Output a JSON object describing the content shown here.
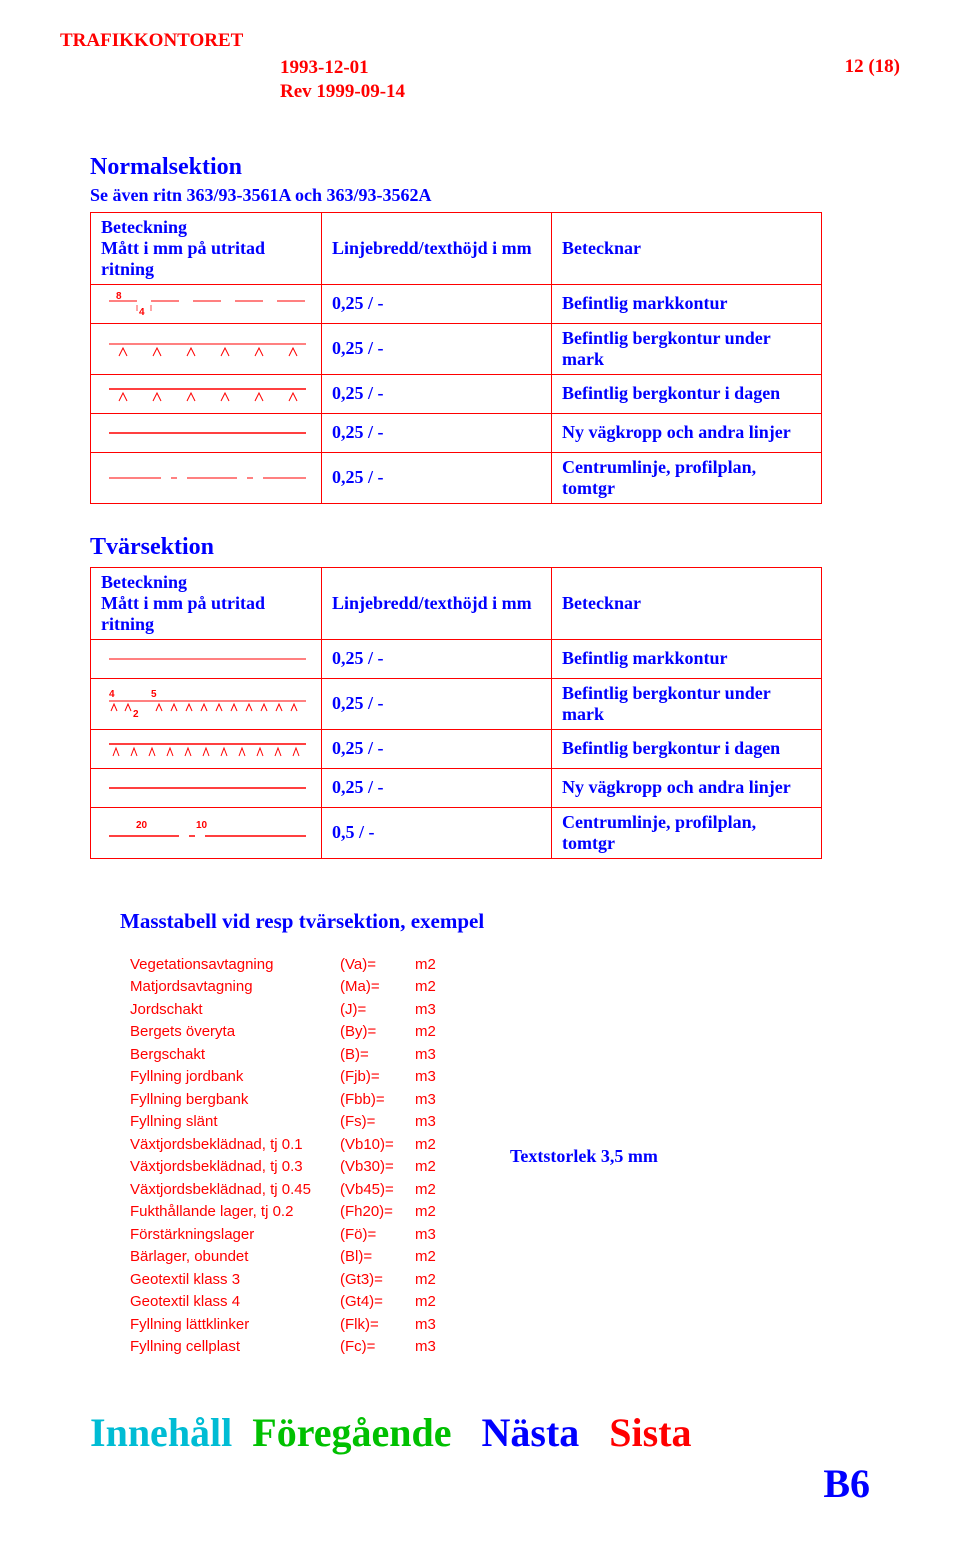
{
  "header": {
    "org": "TRAFIKKONTORET",
    "date": "1993-12-01",
    "rev": "Rev 1999-09-14",
    "page": "12 (18)"
  },
  "normal": {
    "title": "Normalsektion",
    "subtitle": "Se även ritn 363/93-3561A och 363/93-3562A",
    "colA": "Beteckning\nMått i mm på utritad ritning",
    "colB": "Linjebredd/texthöjd i mm",
    "colC": "Betecknar",
    "rows": [
      {
        "mid": "0,25 / -",
        "right": "Befintlig markkontur"
      },
      {
        "mid": "0,25 / -",
        "right": "Befintlig bergkontur under mark"
      },
      {
        "mid": "0,25 / -",
        "right": "Befintlig bergkontur i dagen"
      },
      {
        "mid": "0,25 / -",
        "right": "Ny vägkropp och andra linjer"
      },
      {
        "mid": "0,25 / -",
        "right": "Centrumlinje, profilplan, tomtgr"
      }
    ]
  },
  "tvars": {
    "title": "Tvärsektion",
    "colA": "Beteckning\nMått i mm på utritad ritning",
    "colB": "Linjebredd/texthöjd i mm",
    "colC": "Betecknar",
    "rows": [
      {
        "mid": "0,25 / -",
        "right": "Befintlig markkontur"
      },
      {
        "mid": "0,25 / -",
        "right": "Befintlig bergkontur under mark"
      },
      {
        "mid": "0,25 / -",
        "right": "Befintlig bergkontur i dagen"
      },
      {
        "mid": "0,25 / -",
        "right": "Ny vägkropp och andra linjer"
      },
      {
        "mid": "0,5 / -",
        "right": "Centrumlinje, profilplan, tomtgr"
      }
    ]
  },
  "mass": {
    "title": "Masstabell vid resp tvärsektion, exempel",
    "note": "Textstorlek 3,5 mm",
    "rows": [
      {
        "label": "Vegetationsavtagning",
        "code": "(Va)=",
        "unit": "m2"
      },
      {
        "label": "Matjordsavtagning",
        "code": "(Ma)=",
        "unit": "m2"
      },
      {
        "label": "Jordschakt",
        "code": "(J)=",
        "unit": "m3"
      },
      {
        "label": "Bergets överyta",
        "code": "(By)=",
        "unit": "m2"
      },
      {
        "label": "Bergschakt",
        "code": "(B)=",
        "unit": "m3"
      },
      {
        "label": "Fyllning jordbank",
        "code": "(Fjb)=",
        "unit": "m3"
      },
      {
        "label": "Fyllning bergbank",
        "code": "(Fbb)=",
        "unit": "m3"
      },
      {
        "label": "Fyllning slänt",
        "code": "(Fs)=",
        "unit": "m3"
      },
      {
        "label": "Växtjordsbeklädnad, tj 0.1",
        "code": "(Vb10)=",
        "unit": "m2"
      },
      {
        "label": "Växtjordsbeklädnad, tj 0.3",
        "code": "(Vb30)=",
        "unit": "m2"
      },
      {
        "label": "Växtjordsbeklädnad, tj 0.45",
        "code": "(Vb45)=",
        "unit": "m2"
      },
      {
        "label": "Fukthållande lager, tj 0.2",
        "code": "(Fh20)=",
        "unit": "m2"
      },
      {
        "label": "Förstärkningslager",
        "code": "(Fö)=",
        "unit": "m3"
      },
      {
        "label": "Bärlager, obundet",
        "code": "(Bl)=",
        "unit": "m2"
      },
      {
        "label": "Geotextil klass 3",
        "code": "(Gt3)=",
        "unit": "m2"
      },
      {
        "label": "Geotextil klass 4",
        "code": "(Gt4)=",
        "unit": "m2"
      },
      {
        "label": "Fyllning lättklinker",
        "code": "(Flk)=",
        "unit": "m3"
      },
      {
        "label": "Fyllning cellplast",
        "code": "(Fc)=",
        "unit": "m3"
      }
    ]
  },
  "nav": {
    "a": "Innehåll",
    "b": "Föregående",
    "c": "Nästa",
    "d": "Sista",
    "code": "B6"
  }
}
